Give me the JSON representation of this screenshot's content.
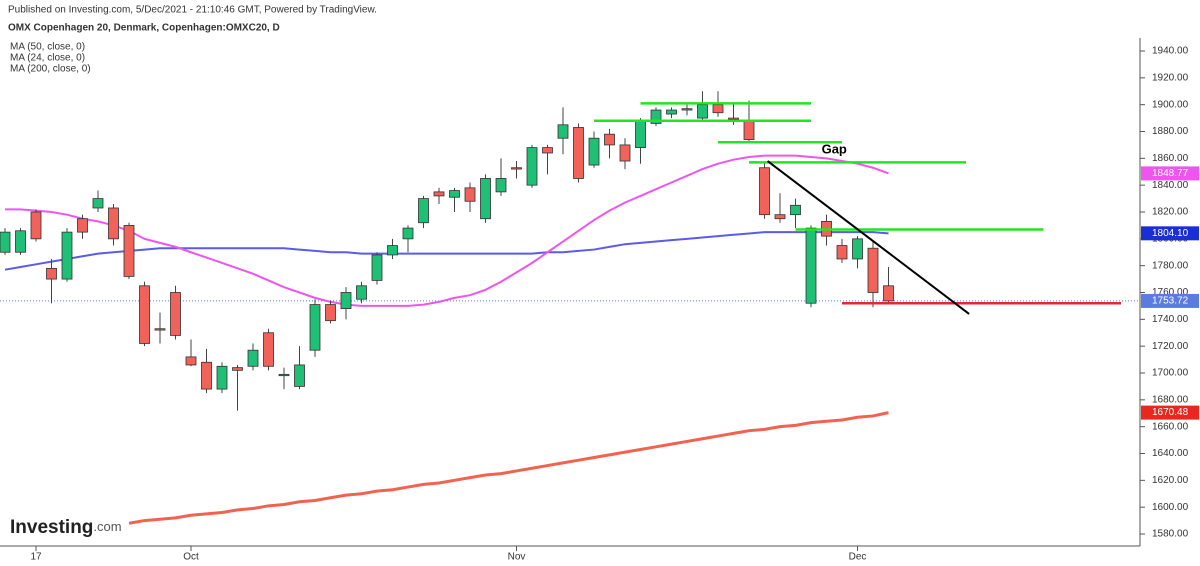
{
  "header": {
    "published": "Published on Investing.com, 5/Dec/2021 - 21:10:46 GMT, Powered by TradingView.",
    "symbol": "OMX Copenhagen 20, Denmark, Copenhagen:OMXC20, D"
  },
  "logo": [
    "Investing",
    ".com"
  ],
  "chart_data": {
    "type": "candlestick",
    "categories": [
      null,
      null,
      "17",
      null,
      null,
      null,
      null,
      null,
      null,
      null,
      null,
      null,
      "Oct",
      null,
      null,
      null,
      null,
      null,
      null,
      null,
      null,
      null,
      null,
      null,
      null,
      null,
      null,
      null,
      null,
      null,
      null,
      null,
      null,
      "Nov",
      null,
      null,
      null,
      null,
      null,
      null,
      null,
      null,
      null,
      null,
      null,
      null,
      null,
      null,
      null,
      null,
      null,
      null,
      null,
      null,
      null,
      "Dec",
      null,
      null
    ],
    "open": [
      1790,
      1790,
      1820,
      1778,
      1770,
      1815,
      1823,
      1823,
      1810,
      1765,
      1733,
      1760,
      1712,
      1708,
      1688,
      1704,
      1705,
      1730,
      1698,
      1690,
      1717,
      1751,
      1748,
      1755,
      1769,
      1788,
      1800,
      1812,
      1835,
      1831,
      1838,
      1815,
      1835,
      1853,
      1840,
      1868,
      1875,
      1883,
      1855,
      1878,
      1870,
      1868,
      1886,
      1893,
      1896,
      1890,
      1900,
      1890,
      1888,
      1853,
      1818,
      1818,
      1752,
      1813,
      1795,
      1785,
      1793,
      1765
    ],
    "high": [
      1808,
      1808,
      1822,
      1785,
      1808,
      1818,
      1836,
      1826,
      1812,
      1768,
      1745,
      1765,
      1725,
      1718,
      1708,
      1706,
      1722,
      1733,
      1704,
      1720,
      1755,
      1754,
      1764,
      1768,
      1790,
      1800,
      1810,
      1832,
      1838,
      1838,
      1842,
      1848,
      1860,
      1858,
      1870,
      1870,
      1898,
      1886,
      1880,
      1882,
      1875,
      1890,
      1898,
      1898,
      1900,
      1910,
      1910,
      1902,
      1903,
      1857,
      1834,
      1830,
      1810,
      1818,
      1800,
      1802,
      1798,
      1779
    ],
    "low": [
      1788,
      1788,
      1798,
      1752,
      1768,
      1800,
      1820,
      1795,
      1770,
      1720,
      1722,
      1725,
      1705,
      1685,
      1685,
      1672,
      1702,
      1702,
      1688,
      1688,
      1712,
      1737,
      1740,
      1752,
      1766,
      1785,
      1790,
      1808,
      1826,
      1820,
      1820,
      1812,
      1832,
      1845,
      1838,
      1848,
      1863,
      1842,
      1853,
      1860,
      1852,
      1856,
      1884,
      1890,
      1892,
      1888,
      1891,
      1885,
      1872,
      1815,
      1812,
      1808,
      1749,
      1795,
      1782,
      1778,
      1749,
      1752
    ],
    "close": [
      1805,
      1806,
      1800,
      1770,
      1805,
      1805,
      1830,
      1800,
      1772,
      1722,
      1732,
      1728,
      1706,
      1688,
      1705,
      1702,
      1717,
      1705,
      1699,
      1706,
      1751,
      1739,
      1760,
      1765,
      1788,
      1795,
      1808,
      1830,
      1832,
      1836,
      1828,
      1845,
      1845,
      1852,
      1868,
      1864,
      1885,
      1845,
      1875,
      1870,
      1858,
      1888,
      1896,
      1896,
      1897,
      1900,
      1894,
      1889,
      1874,
      1818,
      1815,
      1825,
      1808,
      1802,
      1785,
      1800,
      1760,
      1753.72
    ],
    "up_color": "#1fbf75",
    "down_color": "#f0625a",
    "series": [
      {
        "name": "MA (50, close, 0)",
        "color": "#5b5bea",
        "values": [
          1777,
          1779,
          1781,
          1783,
          1785,
          1787,
          1789,
          1790,
          1791,
          1792,
          1793,
          1793,
          1793,
          1793,
          1793,
          1793,
          1793,
          1793,
          1793,
          1792,
          1791,
          1790,
          1790,
          1789,
          1789,
          1789,
          1789,
          1789,
          1789,
          1789,
          1789,
          1789,
          1789,
          1789,
          1789,
          1790,
          1790,
          1791,
          1792,
          1794,
          1796,
          1797,
          1798,
          1799,
          1800,
          1801,
          1802,
          1803,
          1804,
          1805,
          1805,
          1805,
          1805,
          1805,
          1805,
          1805,
          1805,
          1804.1
        ]
      },
      {
        "name": "MA (24, close, 0)",
        "color": "#ee55ee",
        "values": [
          1822,
          1822,
          1821,
          1820,
          1818,
          1815,
          1813,
          1810,
          1806,
          1800,
          1797,
          1794,
          1790,
          1786,
          1782,
          1778,
          1774,
          1769,
          1764,
          1760,
          1756,
          1753,
          1751,
          1750,
          1750,
          1750,
          1750,
          1751,
          1753,
          1756,
          1758,
          1762,
          1768,
          1775,
          1782,
          1790,
          1798,
          1806,
          1814,
          1821,
          1827,
          1832,
          1837,
          1842,
          1847,
          1852,
          1856,
          1859,
          1861,
          1862,
          1862,
          1862,
          1861,
          1860,
          1858,
          1856,
          1853,
          1848.77
        ]
      },
      {
        "name": "MA (200, close, 0)",
        "color": "#f2624f",
        "values": [
          null,
          null,
          null,
          null,
          null,
          null,
          null,
          null,
          1588,
          1590,
          1591,
          1592,
          1594,
          1595,
          1596,
          1598,
          1599,
          1601,
          1602,
          1604,
          1605,
          1607,
          1609,
          1610,
          1612,
          1613,
          1615,
          1617,
          1618,
          1620,
          1622,
          1624,
          1625,
          1627,
          1629,
          1631,
          1633,
          1635,
          1637,
          1639,
          1641,
          1643,
          1645,
          1647,
          1649,
          1651,
          1653,
          1655,
          1657,
          1658,
          1660,
          1661,
          1663,
          1664,
          1665,
          1667,
          1668,
          1670.48
        ]
      }
    ],
    "price_tags": [
      {
        "value": 1848.77,
        "label": "1848.77",
        "color": "#ee55ee"
      },
      {
        "value": 1804.1,
        "label": "1804.10",
        "color": "#1a2fd1"
      },
      {
        "value": 1753.72,
        "label": "1753.72",
        "color": "#5b7be0"
      },
      {
        "value": 1670.48,
        "label": "1670.48",
        "color": "#e8281e"
      }
    ],
    "last_price": 1753.72,
    "levels": [
      {
        "price": 1901,
        "from": 41,
        "to": 52,
        "color": "#22e522"
      },
      {
        "price": 1888,
        "from": 38,
        "to": 52,
        "color": "#22e522"
      },
      {
        "price": 1872,
        "from": 46,
        "to": 54,
        "color": "#22e522"
      },
      {
        "price": 1857,
        "from": 48,
        "to": 62,
        "color": "#22e522"
      },
      {
        "price": 1807,
        "from": 51,
        "to": 67,
        "color": "#22e522"
      },
      {
        "price": 1752,
        "from": 54,
        "to": 72,
        "color": "#e0283a"
      }
    ],
    "trendline": {
      "from": [
        49.2,
        1858
      ],
      "to": [
        62.2,
        1744
      ],
      "color": "#000000"
    },
    "annotation": {
      "text": "Gap",
      "x": 53.5,
      "price": 1866
    },
    "ylim": [
      1580,
      1940
    ],
    "yticks": [
      {
        "value": 1580,
        "label": "1580.00"
      },
      {
        "value": 1600,
        "label": "1600.00"
      },
      {
        "value": 1620,
        "label": "1620.00"
      },
      {
        "value": 1640,
        "label": "1640.00"
      },
      {
        "value": 1660,
        "label": "1660.00"
      },
      {
        "value": 1680,
        "label": "1680.00"
      },
      {
        "value": 1700,
        "label": "1700.00"
      },
      {
        "value": 1720,
        "label": "1720.00"
      },
      {
        "value": 1740,
        "label": "1740.00"
      },
      {
        "value": 1760,
        "label": "1760.00"
      },
      {
        "value": 1780,
        "label": "1780.00"
      },
      {
        "value": 1800,
        "label": "1800.00"
      },
      {
        "value": 1820,
        "label": "1820.00"
      },
      {
        "value": 1840,
        "label": "1840.00"
      },
      {
        "value": 1860,
        "label": "1860.00"
      },
      {
        "value": 1880,
        "label": "1880.00"
      },
      {
        "value": 1900,
        "label": "1900.00"
      },
      {
        "value": 1920,
        "label": "1920.00"
      },
      {
        "value": 1940,
        "label": "1940.00"
      }
    ]
  }
}
